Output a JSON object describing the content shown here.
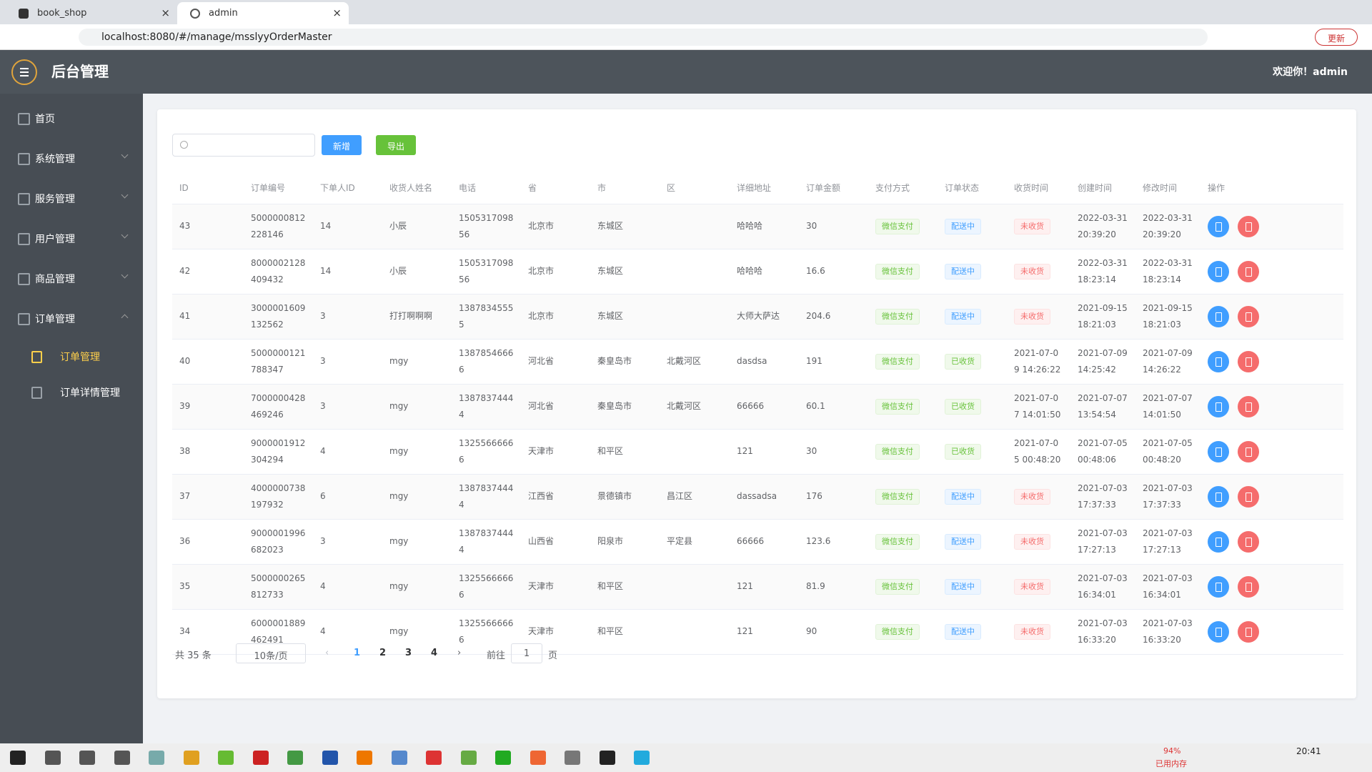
{
  "browser": {
    "tabs": [
      "book_shop",
      "admin"
    ],
    "url": "localhost:8080/#/manage/msslyyOrderMaster",
    "update_button": "更新"
  },
  "header": {
    "title": "后台管理",
    "welcome": "欢迎你！admin"
  },
  "sidebar": {
    "menu": [
      "首页",
      "系统管理",
      "服务管理",
      "用户管理",
      "商品管理",
      "订单管理"
    ],
    "submenu": [
      "订单管理",
      "订单详情管理"
    ]
  },
  "toolbar": {
    "add": "新增",
    "export": "导出"
  },
  "table": {
    "columns": [
      "ID",
      "订单编号",
      "下单人ID",
      "收货人姓名",
      "电话",
      "省",
      "市",
      "区",
      "详细地址",
      "订单金额",
      "支付方式",
      "订单状态",
      "收货时间",
      "创建时间",
      "修改时间",
      "操作"
    ],
    "rows": [
      [
        "43",
        "5000000812228146",
        "14",
        "小辰",
        "150531709856",
        "北京市",
        "东城区",
        null,
        "哈哈哈",
        "30",
        "微信支付",
        "配送中",
        "未收货",
        "2022-03-31 20:39:20",
        "2022-03-31 20:39:20"
      ],
      [
        "42",
        "8000002128409432",
        "14",
        "小辰",
        "150531709856",
        "北京市",
        "东城区",
        null,
        "哈哈哈",
        "16.6",
        "微信支付",
        "配送中",
        "未收货",
        "2022-03-31 18:23:14",
        "2022-03-31 18:23:14"
      ],
      [
        "41",
        "3000001609132562",
        "3",
        "打打啊啊啊",
        "13878345555",
        "北京市",
        "东城区",
        null,
        "大师大萨达",
        "204.6",
        "微信支付",
        "配送中",
        "未收货",
        "2021-09-15 18:21:03",
        "2021-09-15 18:21:03"
      ],
      [
        "40",
        "5000000121788347",
        "3",
        "mgy",
        "13878546666",
        "河北省",
        "秦皇岛市",
        "北戴河区",
        "dasdsa",
        "191",
        "微信支付",
        "已收货",
        "2021-07-09 14:26:22",
        "2021-07-09 14:25:42",
        "2021-07-09 14:26:22"
      ],
      [
        "39",
        "7000000428469246",
        "3",
        "mgy",
        "13878374444",
        "河北省",
        "秦皇岛市",
        "北戴河区",
        "66666",
        "60.1",
        "微信支付",
        "已收货",
        "2021-07-07 14:01:50",
        "2021-07-07 13:54:54",
        "2021-07-07 14:01:50"
      ],
      [
        "38",
        "9000001912304294",
        "4",
        "mgy",
        "13255666666",
        "天津市",
        "和平区",
        null,
        "121",
        "30",
        "微信支付",
        "已收货",
        "2021-07-05 00:48:20",
        "2021-07-05 00:48:06",
        "2021-07-05 00:48:20"
      ],
      [
        "37",
        "4000000738197932",
        "6",
        "mgy",
        "13878374444",
        "江西省",
        "景德镇市",
        "昌江区",
        "dassadsa",
        "176",
        "微信支付",
        "配送中",
        "未收货",
        "2021-07-03 17:37:33",
        "2021-07-03 17:37:33"
      ],
      [
        "36",
        "9000001996682023",
        "3",
        "mgy",
        "13878374444",
        "山西省",
        "阳泉市",
        "平定县",
        "66666",
        "123.6",
        "微信支付",
        "配送中",
        "未收货",
        "2021-07-03 17:27:13",
        "2021-07-03 17:27:13"
      ],
      [
        "35",
        "5000000265812733",
        "4",
        "mgy",
        "13255666666",
        "天津市",
        "和平区",
        null,
        "121",
        "81.9",
        "微信支付",
        "配送中",
        "未收货",
        "2021-07-03 16:34:01",
        "2021-07-03 16:34:01"
      ],
      [
        "34",
        "6000001889462491",
        "4",
        "mgy",
        "13255666666",
        "天津市",
        "和平区",
        null,
        "121",
        "90",
        "微信支付",
        "配送中",
        "未收货",
        "2021-07-03 16:33:20",
        "2021-07-03 16:33:20"
      ]
    ]
  },
  "pagination": {
    "total": "共 35 条",
    "page_size": "10条/页",
    "pages": [
      "1",
      "2",
      "3",
      "4"
    ],
    "goto": "前往",
    "goto_value": "1",
    "page_unit": "页"
  },
  "taskbar": {
    "memory_percent": "94%",
    "memory_label": "已用内存",
    "clock": "20:41"
  }
}
